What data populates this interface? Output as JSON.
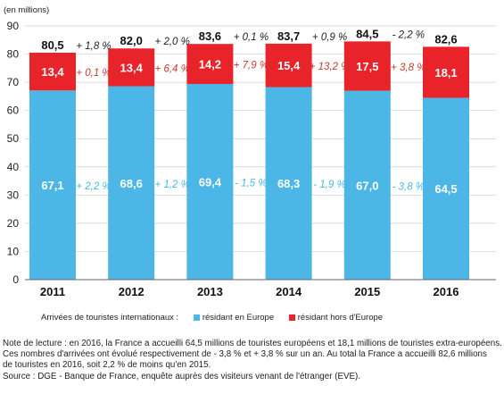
{
  "colors": {
    "europe": "#4cb7e6",
    "non_europe": "#e8232a",
    "growth_europe": "#4cb7e6",
    "growth_non_europe": "#c43a30",
    "growth_total": "#222222",
    "axis": "#666666",
    "grid": "#cfcfcf"
  },
  "chart_data": {
    "type": "bar",
    "stacked": true,
    "unit_label": "(en millions)",
    "categories": [
      "2011",
      "2012",
      "2013",
      "2014",
      "2015",
      "2016"
    ],
    "series": [
      {
        "name": "résidant en Europe",
        "values": [
          67.1,
          68.6,
          69.4,
          68.3,
          67.0,
          64.5
        ],
        "labels": [
          "67,1",
          "68,6",
          "69,4",
          "68,3",
          "67,0",
          "64,5"
        ],
        "growth": [
          "+ 2,2 %",
          "+ 1,2 %",
          "- 1,5 %",
          "- 1,9 %",
          "- 3,8 %",
          ""
        ]
      },
      {
        "name": "résidant hors d'Europe",
        "values": [
          13.4,
          13.4,
          14.2,
          15.4,
          17.5,
          18.1
        ],
        "labels": [
          "13,4",
          "13,4",
          "14,2",
          "15,4",
          "17,5",
          "18,1"
        ],
        "growth": [
          "+ 0,1 %",
          "+ 6,4 %",
          "+ 7,9 %",
          "+ 13,2 %",
          "+ 3,8 %",
          ""
        ]
      }
    ],
    "totals": [
      80.5,
      82.0,
      83.6,
      83.7,
      84.5,
      82.6
    ],
    "total_labels": [
      "80,5",
      "82,0",
      "83,6",
      "83,7",
      "84,5",
      "82,6"
    ],
    "total_growth": [
      "+ 1,8 %",
      "+ 2,0 %",
      "+ 0,1 %",
      "+ 0,9 %",
      "- 2,2 %",
      ""
    ],
    "ylim": [
      0,
      90
    ],
    "yticks": [
      0,
      10,
      20,
      30,
      40,
      50,
      60,
      70,
      80,
      90
    ],
    "grid": true,
    "legend_position": "bottom-left"
  },
  "legend": {
    "lead": "Arrivées de touristes internationaux :",
    "items": [
      "résidant en Europe",
      "résidant hors d'Europe"
    ]
  },
  "notes": [
    "Note de lecture : en 2016, la France a accueilli 64,5 millions de touristes européens et 18,1 millions de touristes extra-européens.",
    "Ces nombres d'arrivées ont évolué respectivement de - 3,8 % et + 3,8 % sur un an. Au total la France a accueilli 82,6 millions",
    "de touristes en 2016, soit 2,2 % de moins qu'en 2015.",
    "Source : DGE - Banque de France, enquête auprès des visiteurs venant de l'étranger (EVE)."
  ]
}
